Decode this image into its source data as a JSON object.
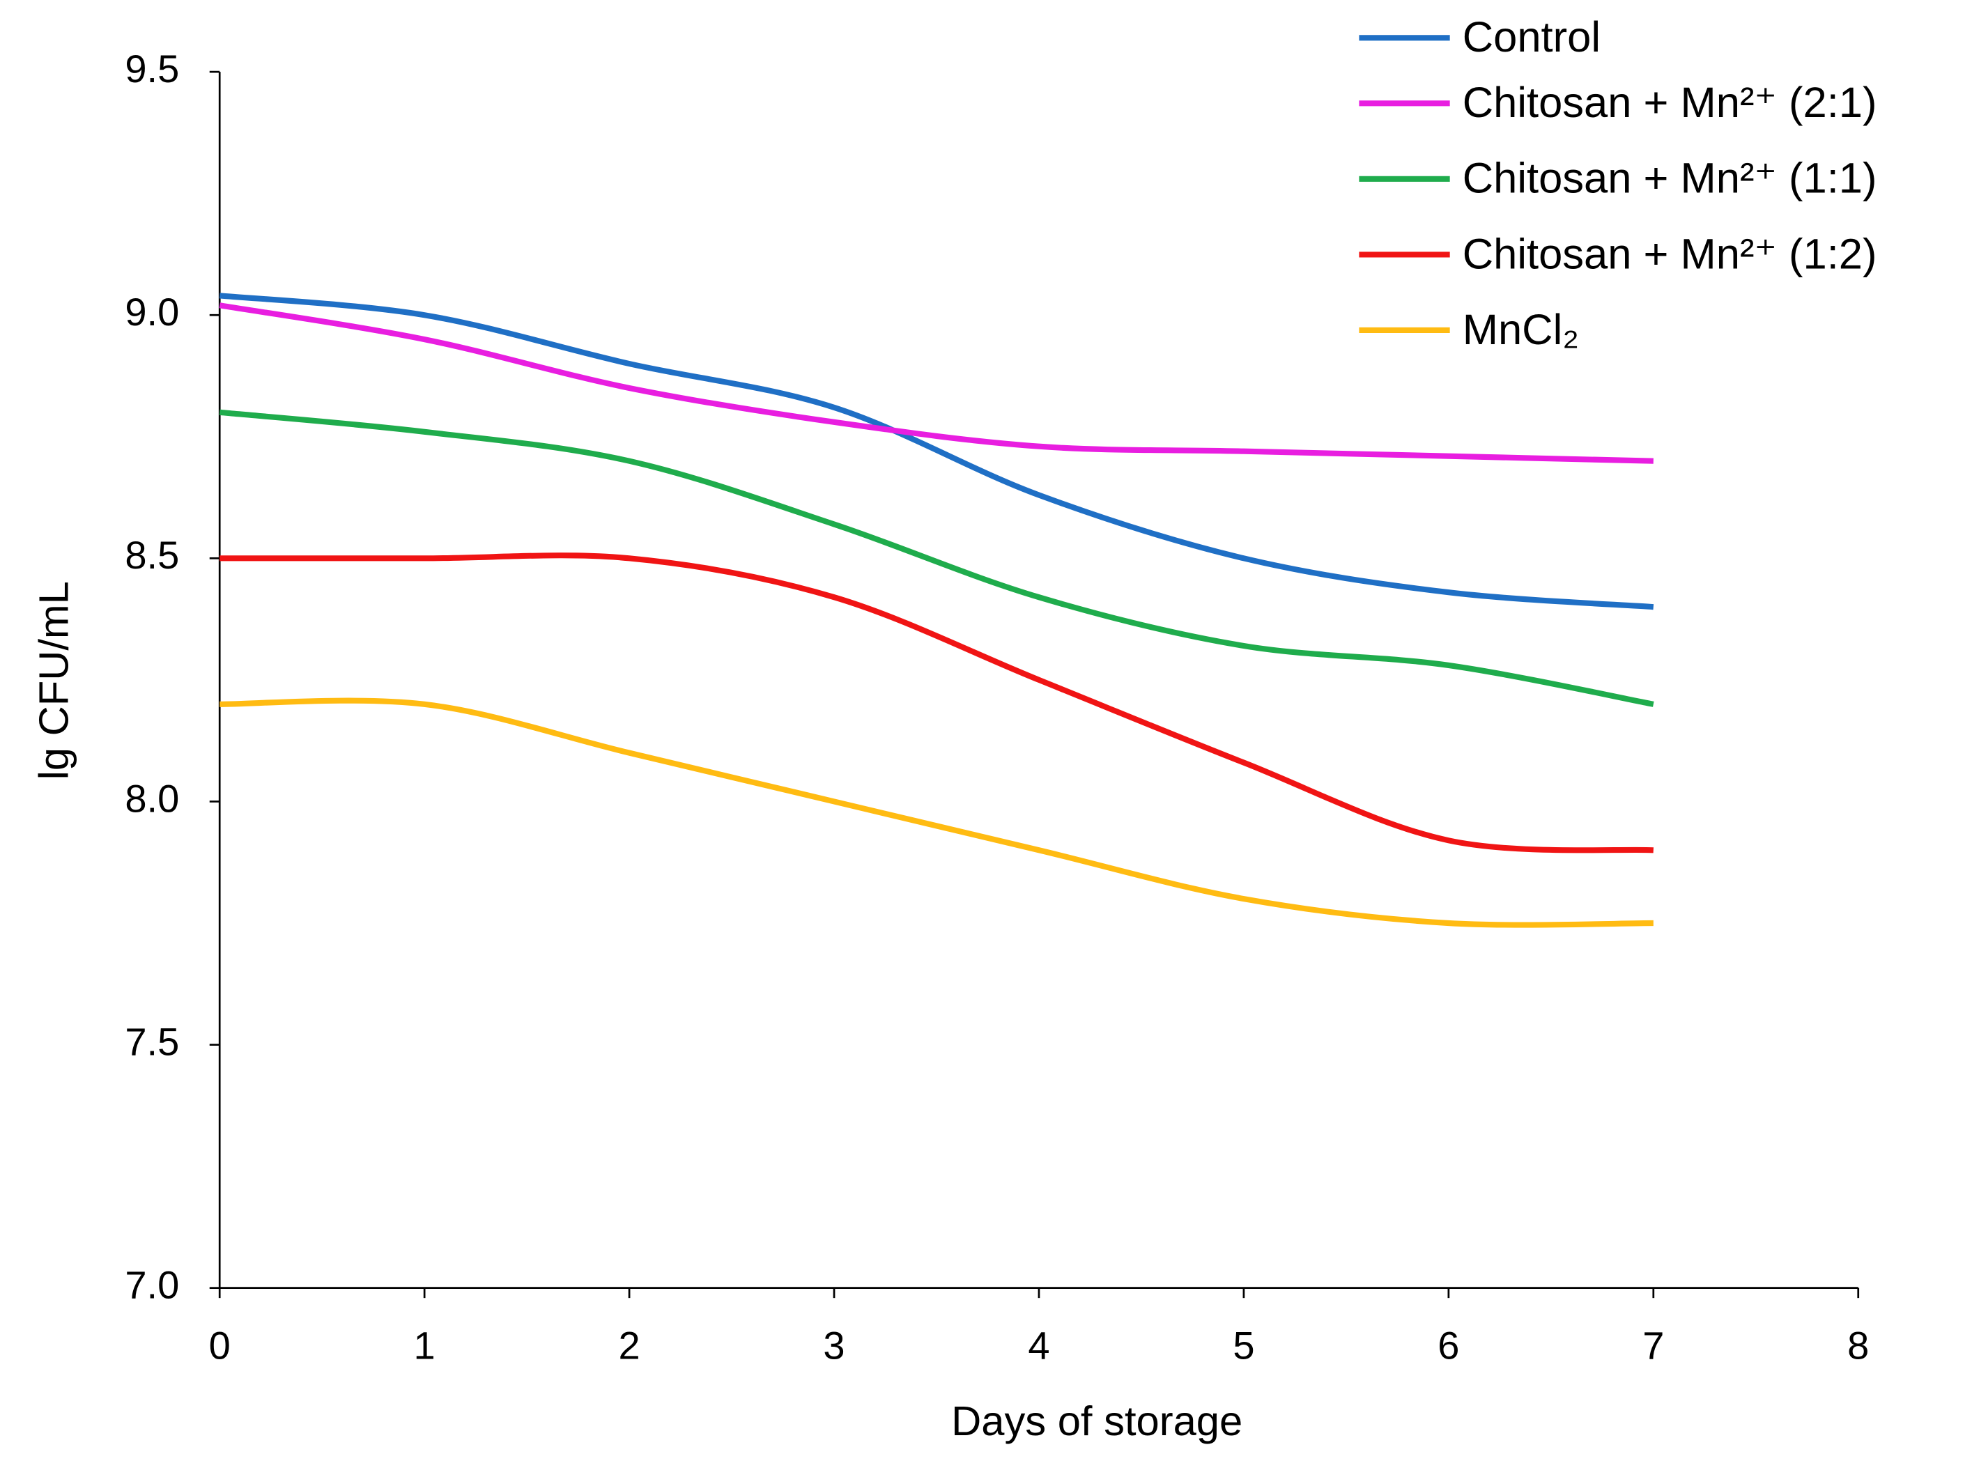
{
  "chart_data": {
    "type": "line",
    "x_label": "Days of storage",
    "y_label": "lg CFU/mL",
    "x": [
      0,
      1,
      2,
      3,
      4,
      5,
      6,
      7
    ],
    "xlim": [
      0,
      8
    ],
    "xticks": [
      0,
      1,
      2,
      3,
      4,
      5,
      6,
      7,
      8
    ],
    "ylim": [
      7.0,
      9.5
    ],
    "yticks": [
      {
        "value": 7.0,
        "label": "7.0"
      },
      {
        "value": 7.5,
        "label": "7.5"
      },
      {
        "value": 8.0,
        "label": "8.0"
      },
      {
        "value": 8.5,
        "label": "8.5"
      },
      {
        "value": 9.0,
        "label": "9.0"
      },
      {
        "value": 9.5,
        "label": "9.5"
      }
    ],
    "grid": false,
    "legend": "top-right",
    "smooth": true,
    "series": [
      {
        "name": "Control",
        "color": "#1f6fc5",
        "values": [
          9.04,
          9.0,
          8.9,
          8.81,
          8.63,
          8.5,
          8.43,
          8.4
        ]
      },
      {
        "name": "Chitosan + Mn²⁺ (2:1)",
        "color": "#e81ee0",
        "values": [
          9.02,
          8.95,
          8.85,
          8.78,
          8.73,
          8.72,
          8.71,
          8.7
        ]
      },
      {
        "name": "Chitosan + Mn²⁺ (1:1)",
        "color": "#1fac4c",
        "values": [
          8.8,
          8.76,
          8.7,
          8.57,
          8.42,
          8.32,
          8.28,
          8.2
        ]
      },
      {
        "name": "Chitosan + Mn²⁺ (1:2)",
        "color": "#f01414",
        "values": [
          8.5,
          8.5,
          8.5,
          8.42,
          8.25,
          8.08,
          7.92,
          7.9
        ]
      },
      {
        "name": "MnCl₂",
        "color": "#ffbb12",
        "values": [
          8.2,
          8.2,
          8.1,
          8.0,
          7.9,
          7.8,
          7.75,
          7.75
        ]
      }
    ]
  }
}
